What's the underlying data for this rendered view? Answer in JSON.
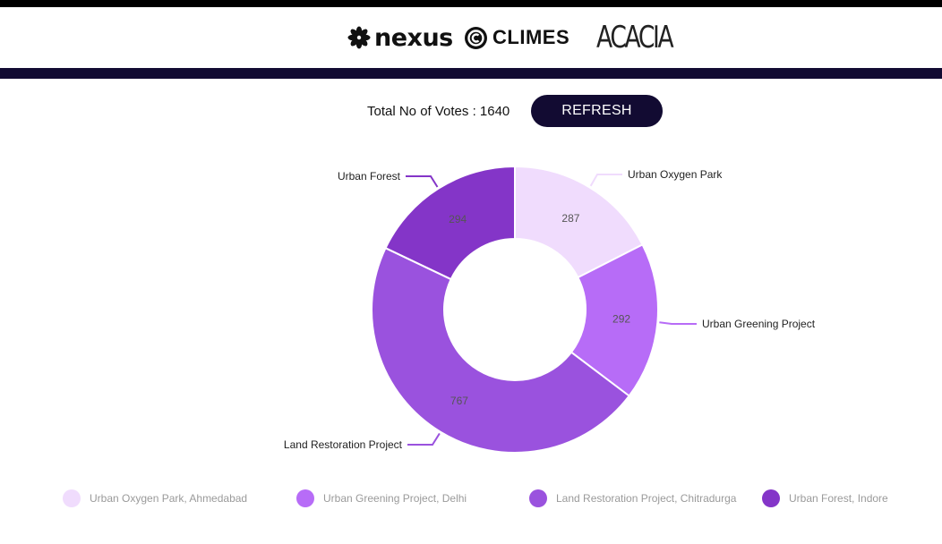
{
  "header": {
    "logos": [
      {
        "name": "nexus",
        "text": "nexus"
      },
      {
        "name": "climes",
        "text": "CLIMES"
      },
      {
        "name": "acacia",
        "text": "ACACIA"
      }
    ]
  },
  "votes": {
    "label": "Total No of Votes : 1640",
    "refresh_label": "REFRESH"
  },
  "colors": {
    "header_bar": "#120b32",
    "button_bg": "#120b32"
  },
  "chart_data": {
    "type": "pie",
    "donut": true,
    "categories": [
      "Urban Oxygen Park",
      "Urban Greening Project",
      "Land Restoration Project",
      "Urban Forest"
    ],
    "values": [
      287,
      292,
      767,
      294
    ],
    "colors": [
      "#f0dcfd",
      "#b76cf7",
      "#9a52de",
      "#8435c8"
    ],
    "legend": {
      "position": "bottom",
      "labels": [
        "Urban Oxygen Park, Ahmedabad",
        "Urban Greening Project, Delhi",
        "Land Restoration Project, Chitradurga",
        "Urban Forest, Indore"
      ]
    }
  }
}
